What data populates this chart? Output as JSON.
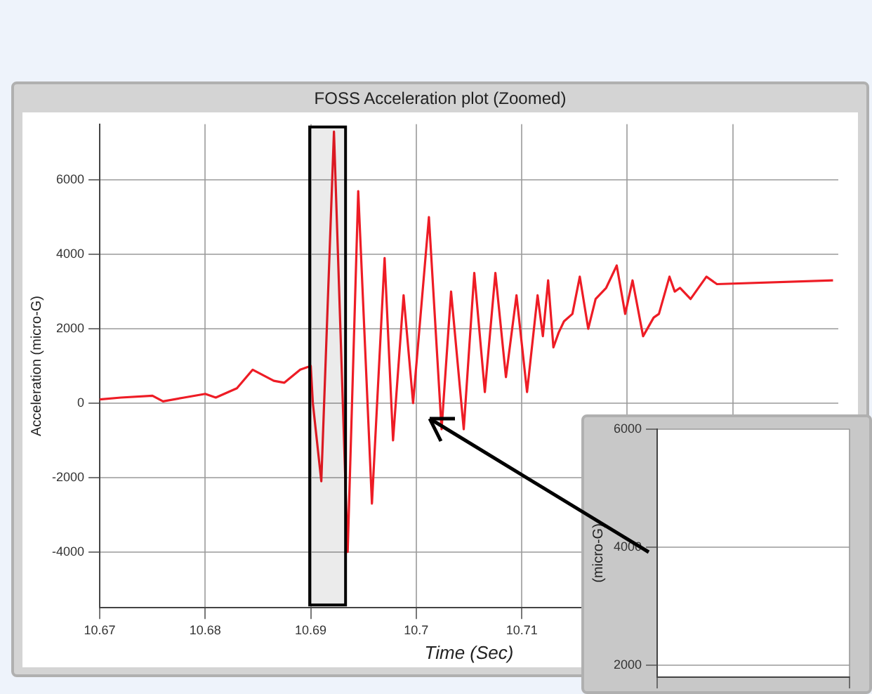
{
  "chart_data": [
    {
      "type": "line",
      "title": "FOSS Acceleration plot (Zoomed)",
      "xlabel": "Time (Sec)",
      "ylabel": "Acceleration (micro-G)",
      "xlim": [
        10.67,
        10.74
      ],
      "xticks": [
        10.67,
        10.68,
        10.69,
        10.7,
        10.71,
        {
          "value": 10.72,
          "label": null
        },
        {
          "value": 10.73,
          "label": null
        }
      ],
      "ylim": [
        -5500,
        7500
      ],
      "yticks": [
        -4000,
        -2000,
        0,
        2000,
        4000,
        6000
      ],
      "grid": true,
      "legend": false,
      "marker": "none",
      "line_style": "solid",
      "bands": [
        {
          "axis": "x",
          "from": 10.6899,
          "to": 10.6933,
          "color": "#000000"
        }
      ],
      "series": [
        {
          "color": "#ee1c25",
          "x": [
            10.67,
            10.672,
            10.675,
            10.676,
            10.678,
            10.68,
            10.681,
            10.683,
            10.6845,
            10.6865,
            10.6875,
            10.689,
            10.69,
            10.6902,
            10.691,
            10.6922,
            10.6935,
            10.6945,
            10.6958,
            10.697,
            10.6978,
            10.6988,
            10.6997,
            10.7012,
            10.7024,
            10.7033,
            10.7045,
            10.7055,
            10.7065,
            10.7075,
            10.7085,
            10.7095,
            10.7105,
            10.7115,
            10.712,
            10.7125,
            10.713,
            10.7135,
            10.714,
            10.7148,
            10.7155,
            10.7163,
            10.717,
            10.718,
            10.719,
            10.7198,
            10.7205,
            10.7215,
            10.7225,
            10.723,
            10.724,
            10.7245,
            10.725,
            10.726,
            10.7275,
            10.7285,
            10.7395
          ],
          "values": [
            100,
            150,
            200,
            50,
            150,
            250,
            150,
            400,
            900,
            600,
            550,
            900,
            1000,
            0,
            -2100,
            7300,
            -4000,
            5700,
            -2700,
            3900,
            -1000,
            2900,
            0,
            5000,
            -700,
            3000,
            -700,
            3500,
            300,
            3500,
            700,
            2900,
            300,
            2900,
            1800,
            3300,
            1500,
            1900,
            2200,
            2400,
            3400,
            2000,
            2800,
            3100,
            3700,
            2400,
            3300,
            1800,
            2300,
            2400,
            3400,
            3000,
            3100,
            2800,
            3400,
            3200,
            3300
          ]
        }
      ]
    },
    {
      "type": "line",
      "ylabel": "(micro-G)",
      "ylim": [
        1800,
        6000
      ],
      "yticks": [
        2000,
        4000,
        6000
      ],
      "grid": true,
      "legend": false,
      "tick_labels": "y",
      "categories": [
        null,
        null
      ],
      "series": [
        {
          "color": "#ee1c25",
          "values": [
            null,
            null
          ]
        }
      ]
    }
  ]
}
